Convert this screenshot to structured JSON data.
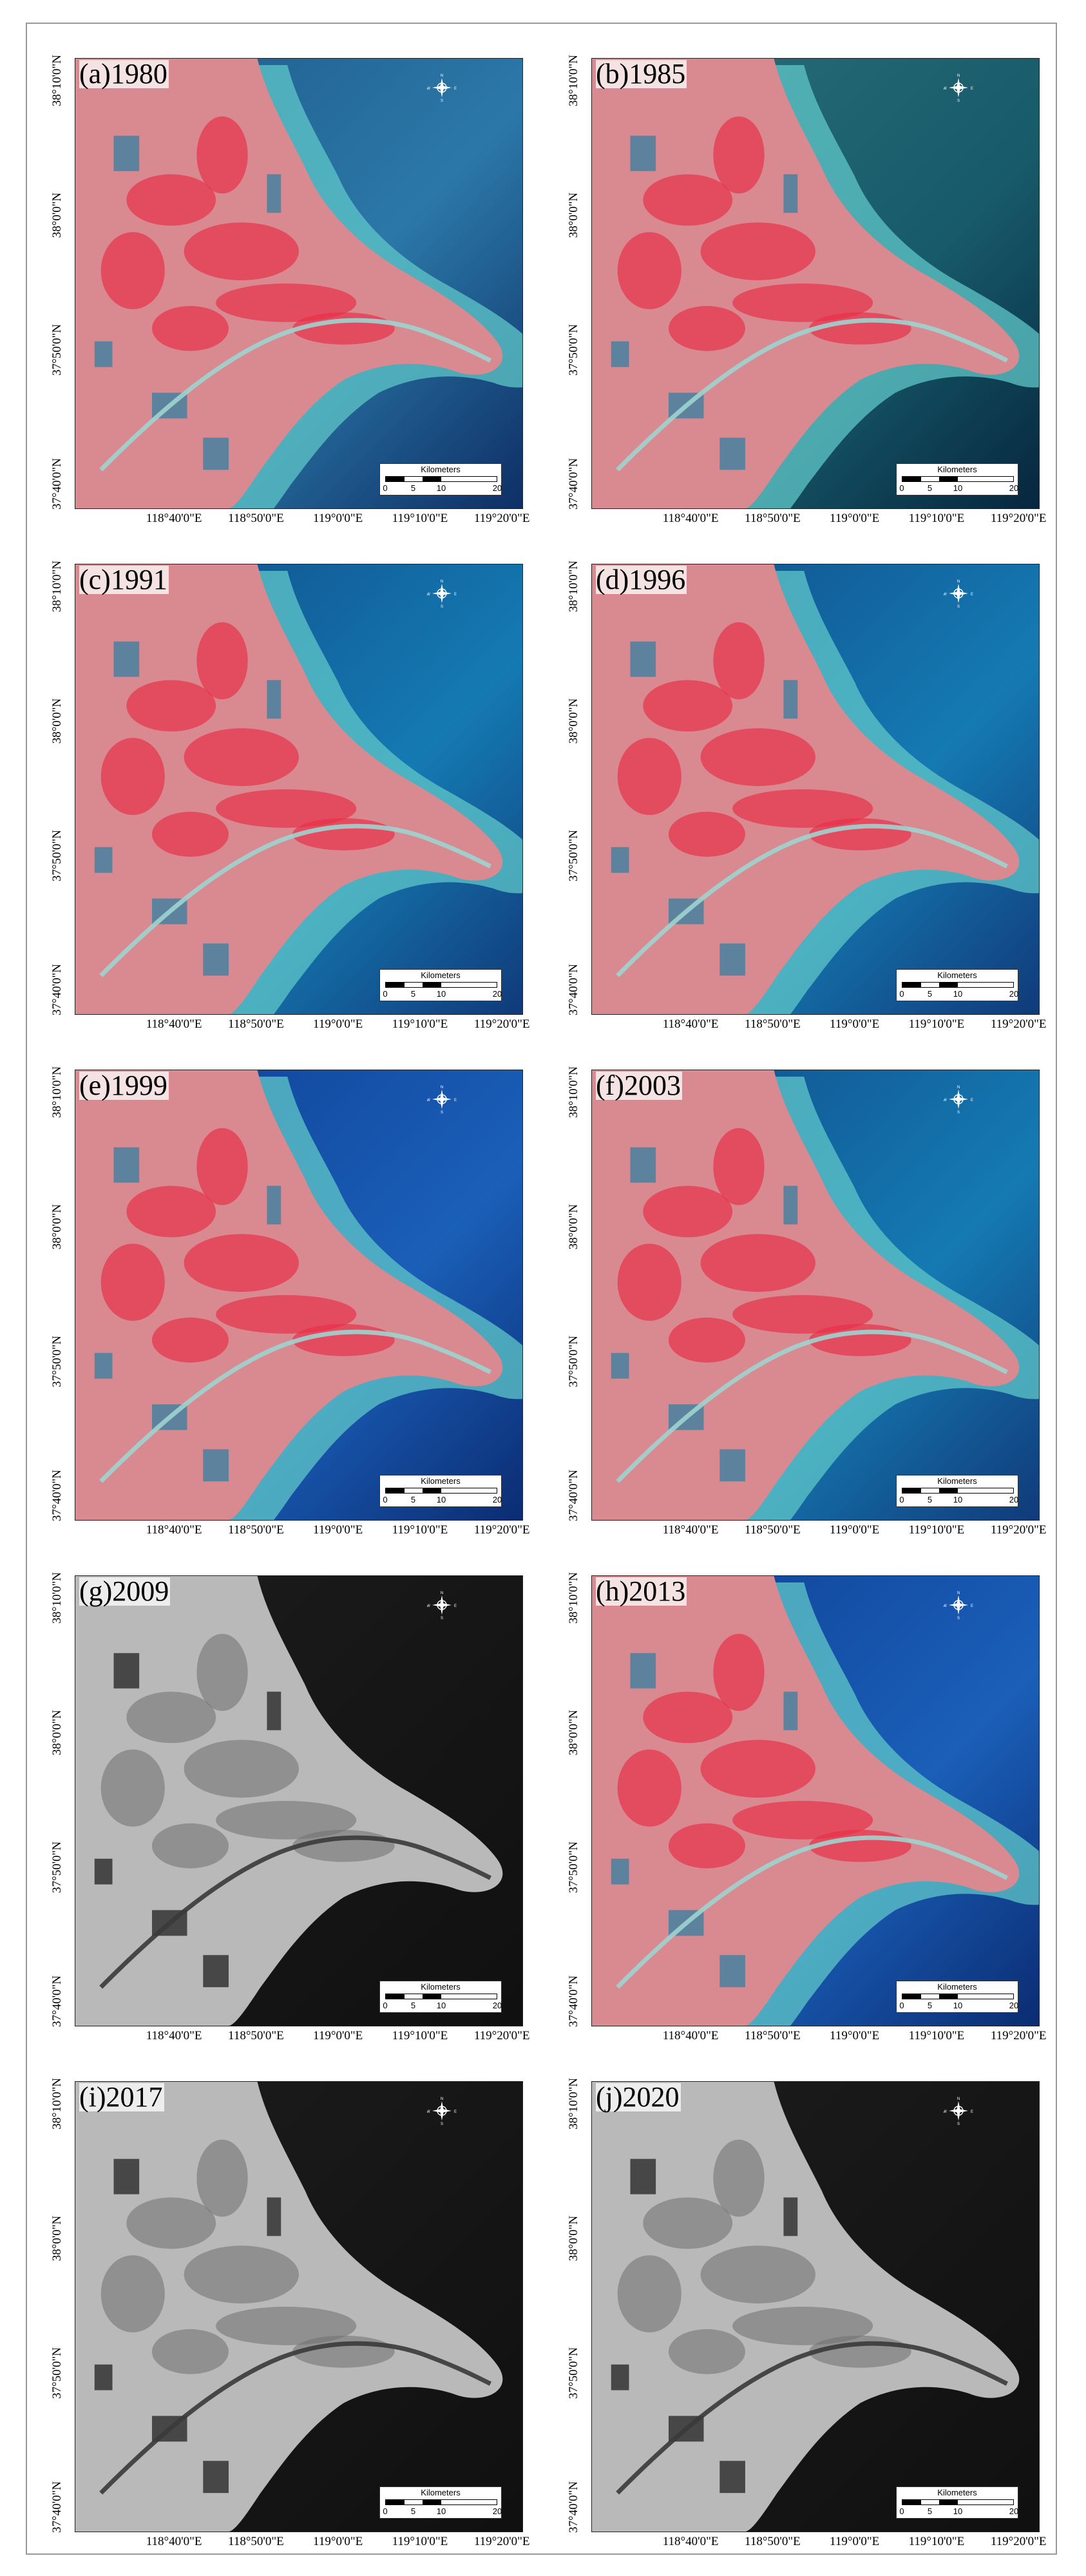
{
  "panels": [
    {
      "label": "(a)1980",
      "style": "false-color",
      "palette": "green"
    },
    {
      "label": "(b)1985",
      "style": "false-color",
      "palette": "teal"
    },
    {
      "label": "(c)1991",
      "style": "false-color",
      "palette": "cyan"
    },
    {
      "label": "(d)1996",
      "style": "false-color",
      "palette": "cyan"
    },
    {
      "label": "(e)1999",
      "style": "false-color",
      "palette": "blue"
    },
    {
      "label": "(f)2003",
      "style": "false-color",
      "palette": "cyan"
    },
    {
      "label": "(g)2009",
      "style": "sar",
      "palette": "gray"
    },
    {
      "label": "(h)2013",
      "style": "false-color",
      "palette": "blue"
    },
    {
      "label": "(i)2017",
      "style": "sar",
      "palette": "gray"
    },
    {
      "label": "(j)2020",
      "style": "sar",
      "palette": "gray"
    }
  ],
  "longitude_labels": [
    "118°40'0\"E",
    "118°50'0\"E",
    "119°0'0\"E",
    "119°10'0\"E",
    "119°20'0\"E"
  ],
  "latitude_labels": [
    "38°10'0\"N",
    "38°0'0\"N",
    "37°50'0\"N",
    "37°40'0\"N"
  ],
  "scale_bar": {
    "title": "Kilometers",
    "ticks": [
      "0",
      "5",
      "10",
      "20"
    ],
    "tick_values": [
      0,
      5,
      10,
      20
    ]
  },
  "compass": {
    "n": "N",
    "s": "S",
    "e": "E",
    "w": "W"
  },
  "colors": {
    "false_color_land": "#d88a90",
    "vegetation_red": "#e8304a",
    "deep_water": "#103a7a",
    "turbid_water": "#5fc7c8",
    "sar_land": "#b9b9b9",
    "sar_water": "#161616"
  }
}
